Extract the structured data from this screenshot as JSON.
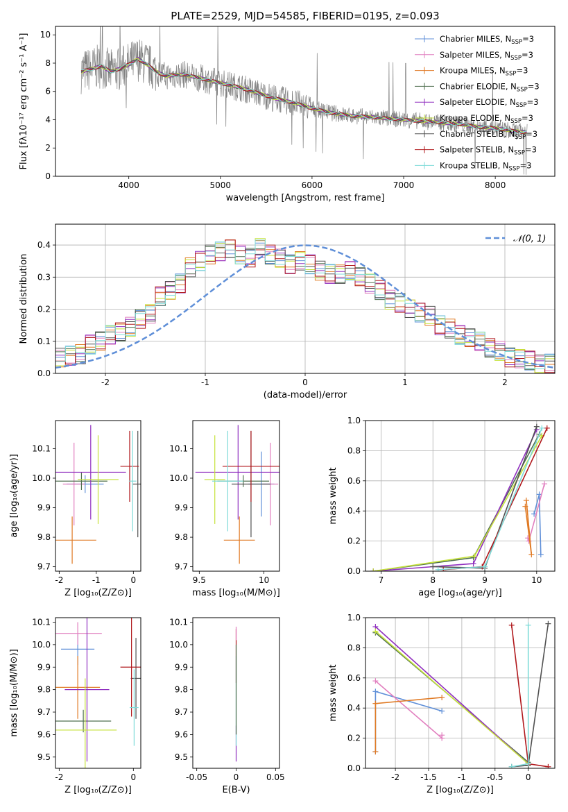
{
  "title": "PLATE=2529, MJD=54585, FIBERID=0195, z=0.093",
  "colors": {
    "chabrier_miles": "#5f8fd8",
    "salpeter_miles": "#e17fbf",
    "kroupa_miles": "#e07a24",
    "chabrier_elodie": "#4f6f4f",
    "salpeter_elodie": "#8f2fbf",
    "kroupa_elodie": "#c6e23a",
    "chabrier_stelib": "#505050",
    "salpeter_stelib": "#b0181c",
    "kroupa_stelib": "#7fdbd9",
    "data": "#808080",
    "normal": "#5f8fd8"
  },
  "chart_data": [
    {
      "id": "spectrum",
      "type": "line",
      "xlabel": "wavelength [Angstrom, rest frame]",
      "ylabel": "Flux [fλ10⁻¹⁷ erg cm⁻² s⁻¹ A⁻¹]",
      "xlim": [
        3200,
        8650
      ],
      "ylim": [
        0,
        10.6
      ],
      "xticks": [
        4000,
        5000,
        6000,
        7000,
        8000
      ],
      "yticks": [
        0,
        2,
        4,
        6,
        8,
        10
      ],
      "legend_position": "top-right",
      "continuum": {
        "wavelength": [
          3480,
          3600,
          3700,
          3800,
          3900,
          4000,
          4100,
          4200,
          4300,
          4400,
          4600,
          4800,
          5000,
          5200,
          5400,
          5600,
          5800,
          6000,
          6200,
          6400,
          6600,
          6800,
          7000,
          7200,
          7400,
          7600,
          7800,
          8000,
          8200,
          8350
        ],
        "flux": [
          7.4,
          7.6,
          7.8,
          7.4,
          7.6,
          7.9,
          8.3,
          7.9,
          7.4,
          7.1,
          7.2,
          6.9,
          6.6,
          6.3,
          5.9,
          5.5,
          5.2,
          4.8,
          4.5,
          4.3,
          4.2,
          4.1,
          4.0,
          3.9,
          3.8,
          3.7,
          3.5,
          3.4,
          3.2,
          3.1
        ]
      },
      "series": [
        {
          "name": "Chabrier MILES, N_SSP=3",
          "label": "Chabrier MILES, N",
          "color_key": "chabrier_miles"
        },
        {
          "name": "Salpeter MILES, N_SSP=3",
          "label": "Salpeter MILES, N",
          "color_key": "salpeter_miles"
        },
        {
          "name": "Kroupa MILES, N_SSP=3",
          "label": "Kroupa MILES, N",
          "color_key": "kroupa_miles"
        },
        {
          "name": "Chabrier ELODIE, N_SSP=3",
          "label": "Chabrier ELODIE, N",
          "color_key": "chabrier_elodie"
        },
        {
          "name": "Salpeter ELODIE, N_SSP=3",
          "label": "Salpeter ELODIE, N",
          "color_key": "salpeter_elodie"
        },
        {
          "name": "Kroupa ELODIE, N_SSP=3",
          "label": "Kroupa ELODIE, N",
          "color_key": "kroupa_elodie"
        },
        {
          "name": "Chabrier STELIB, N_SSP=3",
          "label": "Chabrier STELIB, N",
          "color_key": "chabrier_stelib"
        },
        {
          "name": "Salpeter STELIB, N_SSP=3",
          "label": "Salpeter STELIB, N",
          "color_key": "salpeter_stelib"
        },
        {
          "name": "Kroupa STELIB, N_SSP=3",
          "label": "Kroupa STELIB, N",
          "color_key": "kroupa_stelib"
        }
      ]
    },
    {
      "id": "residuals",
      "type": "bar",
      "xlabel": "(data-model)/error",
      "ylabel": "Normed distribution",
      "xlim": [
        -2.5,
        2.5
      ],
      "ylim": [
        0,
        0.465
      ],
      "xticks": [
        -2,
        -1,
        0,
        1,
        2
      ],
      "yticks": [
        0.0,
        0.1,
        0.2,
        0.3,
        0.4
      ],
      "grid": true,
      "legend_position": "top-right",
      "normal_label": "𝒩(0, 1)",
      "bin_width": 0.1,
      "hist": [
        0.05,
        0.055,
        0.06,
        0.075,
        0.09,
        0.1,
        0.11,
        0.12,
        0.13,
        0.145,
        0.16,
        0.17,
        0.185,
        0.21,
        0.24,
        0.26,
        0.28,
        0.3,
        0.33,
        0.35,
        0.36,
        0.37,
        0.38,
        0.39,
        0.38,
        0.37,
        0.36,
        0.38,
        0.39,
        0.37,
        0.36,
        0.35,
        0.34,
        0.35,
        0.36,
        0.34,
        0.32,
        0.31,
        0.3,
        0.31,
        0.32,
        0.33,
        0.3,
        0.28,
        0.26,
        0.25,
        0.23,
        0.22,
        0.21,
        0.2,
        0.19,
        0.18,
        0.17,
        0.15,
        0.14,
        0.13,
        0.12,
        0.11,
        0.1,
        0.09,
        0.08,
        0.07,
        0.06,
        0.05,
        0.045,
        0.04,
        0.035,
        0.03,
        0.03,
        0.025
      ]
    },
    {
      "id": "age_vs_Z",
      "type": "scatter",
      "xlabel": "Z [log₁₀(Z/Z⊙)]",
      "ylabel": "age  [log₁₀(age/yr)]",
      "xlim": [
        -2.1,
        0.2
      ],
      "ylim": [
        9.685,
        10.195
      ],
      "xticks": [
        -2,
        -1,
        0
      ],
      "yticks": [
        9.7,
        9.8,
        9.9,
        10.0,
        10.1
      ],
      "points": [
        {
          "c": "chabrier_miles",
          "x": -1.3,
          "xerr": 0.5,
          "y": 9.98,
          "yerr": 0.03
        },
        {
          "c": "salpeter_miles",
          "x": -1.6,
          "xerr": 0.3,
          "y": 9.98,
          "yerr": 0.14
        },
        {
          "c": "kroupa_miles",
          "x": -1.65,
          "xerr": 0.65,
          "y": 9.79,
          "yerr": 0.08
        },
        {
          "c": "chabrier_elodie",
          "x": -1.4,
          "xerr": 0.7,
          "y": 9.99,
          "yerr": 0.03
        },
        {
          "c": "salpeter_elodie",
          "x": -1.15,
          "xerr": 0.95,
          "y": 10.02,
          "yerr": 0.16
        },
        {
          "c": "kroupa_elodie",
          "x": -0.95,
          "xerr": 0.55,
          "y": 9.995,
          "yerr": 0.15
        },
        {
          "c": "chabrier_stelib",
          "x": 0.12,
          "xerr": 0.15,
          "y": 9.98,
          "yerr": 0.18
        },
        {
          "c": "salpeter_stelib",
          "x": -0.1,
          "xerr": 0.25,
          "y": 10.04,
          "yerr": 0.12
        },
        {
          "c": "kroupa_stelib",
          "x": -0.02,
          "xerr": 0.1,
          "y": 9.99,
          "yerr": 0.17
        }
      ]
    },
    {
      "id": "age_vs_mass",
      "type": "scatter",
      "xlabel": "mass [log₁₀(M/M⊙)]",
      "ylabel": "",
      "xlim": [
        9.45,
        10.12
      ],
      "ylim": [
        9.685,
        10.195
      ],
      "xticks": [
        9.5,
        10.0
      ],
      "yticks": [
        9.7,
        9.8,
        9.9,
        10.0,
        10.1
      ],
      "points": [
        {
          "c": "chabrier_miles",
          "x": 9.98,
          "xerr": 0.1,
          "y": 9.98,
          "yerr": 0.11
        },
        {
          "c": "salpeter_miles",
          "x": 10.05,
          "xerr": 0.06,
          "y": 9.98,
          "yerr": 0.14
        },
        {
          "c": "kroupa_miles",
          "x": 9.81,
          "xerr": 0.12,
          "y": 9.79,
          "yerr": 0.08
        },
        {
          "c": "chabrier_elodie",
          "x": 9.84,
          "xerr": 0.2,
          "y": 9.99,
          "yerr": 0.02
        },
        {
          "c": "salpeter_elodie",
          "x": 9.8,
          "xerr": 0.33,
          "y": 10.02,
          "yerr": 0.16
        },
        {
          "c": "kroupa_elodie",
          "x": 9.62,
          "xerr": 0.08,
          "y": 9.995,
          "yerr": 0.15
        },
        {
          "c": "chabrier_stelib",
          "x": 9.9,
          "xerr": 0.15,
          "y": 9.98,
          "yerr": 0.18
        },
        {
          "c": "salpeter_stelib",
          "x": 9.9,
          "xerr": 0.22,
          "y": 10.04,
          "yerr": 0.12
        },
        {
          "c": "kroupa_stelib",
          "x": 9.72,
          "xerr": 0.12,
          "y": 9.99,
          "yerr": 0.17
        }
      ]
    },
    {
      "id": "weight_vs_age",
      "type": "line",
      "xlabel": "age  [log₁₀(age/yr)]",
      "ylabel": "mass weight",
      "xlim": [
        6.7,
        10.35
      ],
      "ylim": [
        0,
        1
      ],
      "xticks": [
        7,
        8,
        9,
        10
      ],
      "yticks": [
        0.0,
        0.2,
        0.4,
        0.6,
        0.8,
        1.0
      ],
      "grid": true,
      "series": [
        {
          "c": "chabrier_miles",
          "x": [
            10.08,
            10.05,
            9.95
          ],
          "y": [
            0.11,
            0.51,
            0.38
          ]
        },
        {
          "c": "salpeter_miles",
          "x": [
            10.15,
            9.85,
            9.83
          ],
          "y": [
            0.58,
            0.2,
            0.22
          ]
        },
        {
          "c": "kroupa_miles",
          "x": [
            9.8,
            9.9,
            9.78
          ],
          "y": [
            0.47,
            0.11,
            0.43
          ]
        },
        {
          "c": "chabrier_elodie",
          "x": [
            6.85,
            8.78,
            10.05
          ],
          "y": [
            0.0,
            0.09,
            0.91
          ]
        },
        {
          "c": "salpeter_elodie",
          "x": [
            6.85,
            8.78,
            10.0
          ],
          "y": [
            0.0,
            0.05,
            0.94
          ]
        },
        {
          "c": "kroupa_elodie",
          "x": [
            6.85,
            8.8,
            10.1
          ],
          "y": [
            0.0,
            0.1,
            0.9
          ]
        },
        {
          "c": "chabrier_stelib",
          "x": [
            8.0,
            9.0,
            10.0
          ],
          "y": [
            0.03,
            0.02,
            0.96
          ]
        },
        {
          "c": "salpeter_stelib",
          "x": [
            8.2,
            8.95,
            10.2
          ],
          "y": [
            0.01,
            0.03,
            0.95
          ]
        },
        {
          "c": "kroupa_stelib",
          "x": [
            8.1,
            9.0,
            10.1
          ],
          "y": [
            0.01,
            0.03,
            0.95
          ]
        }
      ]
    },
    {
      "id": "mass_vs_Z",
      "type": "scatter",
      "xlabel": "Z [log₁₀(Z/Z⊙)]",
      "ylabel": "mass [log₁₀(M/M⊙)]",
      "xlim": [
        -2.1,
        0.2
      ],
      "ylim": [
        9.45,
        10.12
      ],
      "xticks": [
        -2,
        0
      ],
      "yticks": [
        9.5,
        9.6,
        9.7,
        9.8,
        9.9,
        10.0,
        10.1
      ],
      "points": [
        {
          "c": "chabrier_miles",
          "x": -1.5,
          "xerr": 0.45,
          "y": 9.98,
          "yerr": 0.07
        },
        {
          "c": "salpeter_miles",
          "x": -1.5,
          "xerr": 0.65,
          "y": 10.05,
          "yerr": 0.05
        },
        {
          "c": "kroupa_miles",
          "x": -1.5,
          "xerr": 0.6,
          "y": 9.81,
          "yerr": 0.14
        },
        {
          "c": "chabrier_elodie",
          "x": -1.35,
          "xerr": 0.75,
          "y": 9.66,
          "yerr": 0.05
        },
        {
          "c": "salpeter_elodie",
          "x": -1.25,
          "xerr": 0.6,
          "y": 9.8,
          "yerr": 0.32
        },
        {
          "c": "kroupa_elodie",
          "x": -1.3,
          "xerr": 0.85,
          "y": 9.62,
          "yerr": 0.23
        },
        {
          "c": "chabrier_stelib",
          "x": 0.07,
          "xerr": 0.14,
          "y": 9.85,
          "yerr": 0.18
        },
        {
          "c": "salpeter_stelib",
          "x": -0.05,
          "xerr": 0.3,
          "y": 9.9,
          "yerr": 0.22
        },
        {
          "c": "kroupa_stelib",
          "x": 0.02,
          "xerr": 0.12,
          "y": 9.72,
          "yerr": 0.17
        }
      ]
    },
    {
      "id": "mass_vs_ebv",
      "type": "scatter",
      "xlabel": "E(B-V)",
      "ylabel": "",
      "xlim": [
        -0.055,
        0.055
      ],
      "ylim": [
        9.45,
        10.12
      ],
      "xticks": [
        -0.05,
        0.0,
        0.05
      ],
      "yticks": [
        9.5,
        9.6,
        9.7,
        9.8,
        9.9,
        10.0,
        10.1
      ],
      "points": [
        {
          "c": "salpeter_elodie",
          "x": 0.0,
          "xerr": 0.0,
          "y": 9.56,
          "yerr": 0.08
        },
        {
          "c": "salpeter_stelib",
          "x": 0.0,
          "xerr": 0.0,
          "y": 9.95,
          "yerr": 0.12
        },
        {
          "c": "kroupa_stelib",
          "x": 0.0,
          "xerr": 0.0,
          "y": 9.75,
          "yerr": 0.2
        },
        {
          "c": "chabrier_elodie",
          "x": 0.0,
          "xerr": 0.0,
          "y": 9.8,
          "yerr": 0.2
        },
        {
          "c": "salpeter_miles",
          "x": 0.0,
          "xerr": 0.0,
          "y": 10.05,
          "yerr": 0.03
        }
      ]
    },
    {
      "id": "weight_vs_Z",
      "type": "line",
      "xlabel": "Z [log₁₀(Z/Z⊙)]",
      "ylabel": "mass weight",
      "xlim": [
        -2.45,
        0.4
      ],
      "ylim": [
        0,
        1
      ],
      "xticks": [
        -2.0,
        -1.5,
        -1.0,
        -0.5,
        0.0
      ],
      "yticks": [
        0.0,
        0.2,
        0.4,
        0.6,
        0.8,
        1.0
      ],
      "grid": true,
      "series": [
        {
          "c": "chabrier_miles",
          "x": [
            -2.3,
            -2.3,
            -1.3
          ],
          "y": [
            0.11,
            0.51,
            0.38
          ]
        },
        {
          "c": "salpeter_miles",
          "x": [
            -2.3,
            -1.3,
            -1.3
          ],
          "y": [
            0.58,
            0.2,
            0.22
          ]
        },
        {
          "c": "kroupa_miles",
          "x": [
            -2.3,
            -2.3,
            -1.3
          ],
          "y": [
            0.11,
            0.43,
            0.47
          ]
        },
        {
          "c": "chabrier_elodie",
          "x": [
            -2.3,
            0.0,
            0.0
          ],
          "y": [
            0.9,
            0.04,
            0.03
          ]
        },
        {
          "c": "salpeter_elodie",
          "x": [
            -2.3,
            0.0,
            0.0
          ],
          "y": [
            0.94,
            0.03,
            0.02
          ]
        },
        {
          "c": "kroupa_elodie",
          "x": [
            -2.3,
            0.0,
            0.0
          ],
          "y": [
            0.91,
            0.03,
            0.02
          ]
        },
        {
          "c": "chabrier_stelib",
          "x": [
            -0.25,
            0.0,
            0.3
          ],
          "y": [
            0.01,
            0.02,
            0.96
          ]
        },
        {
          "c": "salpeter_stelib",
          "x": [
            -0.25,
            0.0,
            0.3
          ],
          "y": [
            0.95,
            0.03,
            0.01
          ]
        },
        {
          "c": "kroupa_stelib",
          "x": [
            -0.25,
            0.0,
            0.0
          ],
          "y": [
            0.01,
            0.03,
            0.95
          ]
        }
      ]
    }
  ]
}
